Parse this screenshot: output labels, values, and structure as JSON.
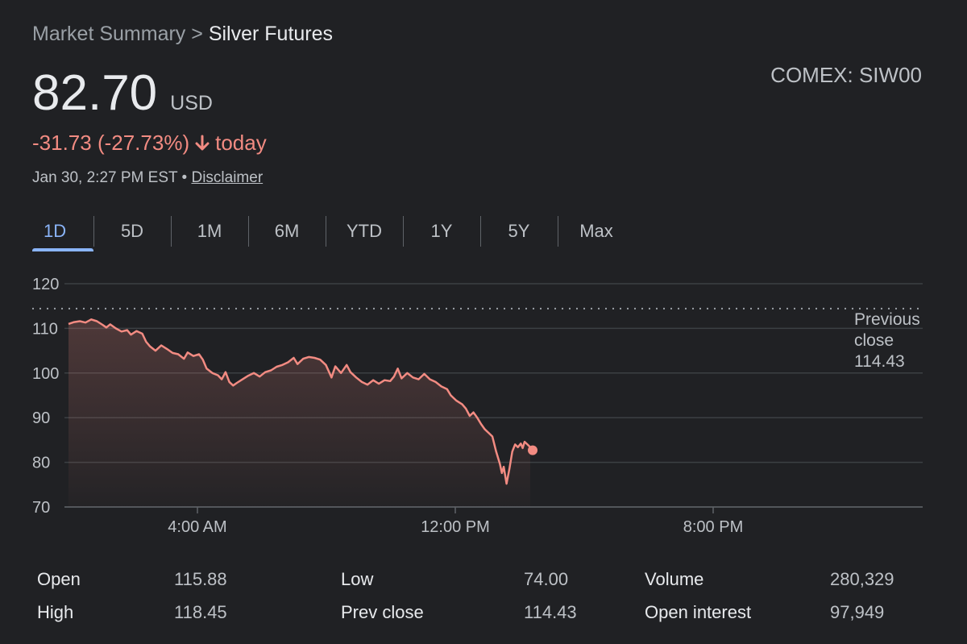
{
  "breadcrumb": {
    "parent": "Market Summary",
    "separator": ">",
    "current": "Silver Futures"
  },
  "exchange": "COMEX: SIW00",
  "price": {
    "value": "82.70",
    "currency": "USD"
  },
  "change": {
    "text": "-31.73 (-27.73%)",
    "period": "today",
    "color": "#f28b82"
  },
  "timestamp": {
    "text": "Jan 30, 2:27 PM EST",
    "separator": "•",
    "disclaimer": "Disclaimer"
  },
  "tabs": [
    "1D",
    "5D",
    "1M",
    "6M",
    "YTD",
    "1Y",
    "5Y",
    "Max"
  ],
  "active_tab": "1D",
  "accent_color": "#8ab4f8",
  "chart_data": {
    "type": "area",
    "y_ticks": [
      "120",
      "110",
      "100",
      "90",
      "80",
      "70"
    ],
    "ylim": [
      70,
      120
    ],
    "x_ticks": [
      {
        "label": "4:00 AM",
        "hour": 4
      },
      {
        "label": "12:00 PM",
        "hour": 12
      },
      {
        "label": "8:00 PM",
        "hour": 20
      }
    ],
    "xlim_hours": [
      0,
      24
    ],
    "previous_close": {
      "label_line1": "Previous",
      "label_line2": "close",
      "value": "114.43"
    },
    "line_color": "#f28b82",
    "series": [
      {
        "values": [
          [
            0.0,
            111.0
          ],
          [
            0.3,
            111.4
          ],
          [
            0.6,
            111.6
          ],
          [
            0.9,
            111.3
          ],
          [
            1.2,
            112.0
          ],
          [
            1.5,
            111.6
          ],
          [
            1.8,
            110.8
          ],
          [
            2.0,
            110.2
          ],
          [
            2.2,
            110.9
          ],
          [
            2.5,
            110.0
          ],
          [
            2.8,
            109.3
          ],
          [
            3.1,
            109.6
          ],
          [
            3.3,
            108.6
          ],
          [
            3.6,
            109.4
          ],
          [
            3.9,
            108.8
          ],
          [
            4.1,
            107.0
          ],
          [
            4.3,
            106.0
          ],
          [
            4.6,
            105.0
          ],
          [
            4.9,
            106.2
          ],
          [
            5.2,
            105.4
          ],
          [
            5.5,
            104.5
          ],
          [
            5.8,
            104.2
          ],
          [
            6.1,
            103.2
          ],
          [
            6.3,
            104.6
          ],
          [
            6.6,
            103.8
          ],
          [
            6.9,
            104.2
          ],
          [
            7.1,
            103.0
          ],
          [
            7.3,
            101.0
          ],
          [
            7.6,
            100.0
          ],
          [
            7.9,
            99.5
          ],
          [
            8.1,
            98.6
          ],
          [
            8.3,
            100.2
          ],
          [
            8.5,
            98.0
          ],
          [
            8.7,
            97.2
          ],
          [
            8.9,
            97.8
          ],
          [
            9.2,
            98.6
          ],
          [
            9.5,
            99.4
          ],
          [
            9.8,
            100.0
          ],
          [
            10.1,
            99.2
          ],
          [
            10.4,
            100.2
          ],
          [
            10.7,
            100.6
          ],
          [
            11.0,
            101.4
          ],
          [
            11.3,
            101.8
          ],
          [
            11.6,
            102.4
          ],
          [
            11.9,
            103.4
          ],
          [
            12.1,
            102.0
          ],
          [
            12.4,
            103.2
          ],
          [
            12.7,
            103.6
          ],
          [
            13.0,
            103.4
          ],
          [
            13.3,
            103.0
          ],
          [
            13.6,
            101.8
          ],
          [
            13.9,
            99.0
          ],
          [
            14.1,
            101.5
          ],
          [
            14.4,
            100.0
          ],
          [
            14.7,
            101.8
          ],
          [
            14.9,
            100.2
          ],
          [
            15.2,
            99.0
          ],
          [
            15.5,
            98.0
          ],
          [
            15.8,
            97.4
          ],
          [
            16.1,
            98.4
          ],
          [
            16.4,
            97.6
          ],
          [
            16.7,
            98.4
          ],
          [
            17.0,
            98.2
          ],
          [
            17.2,
            99.2
          ],
          [
            17.4,
            101.0
          ],
          [
            17.6,
            98.8
          ],
          [
            17.9,
            100.0
          ],
          [
            18.2,
            99.0
          ],
          [
            18.5,
            98.6
          ],
          [
            18.8,
            99.8
          ],
          [
            19.1,
            98.6
          ],
          [
            19.4,
            98.0
          ],
          [
            19.7,
            97.0
          ],
          [
            20.0,
            96.4
          ],
          [
            20.2,
            95.0
          ],
          [
            20.5,
            93.8
          ],
          [
            20.8,
            93.0
          ],
          [
            21.0,
            92.0
          ],
          [
            21.2,
            90.4
          ],
          [
            21.4,
            91.2
          ],
          [
            21.6,
            90.0
          ],
          [
            21.8,
            88.6
          ],
          [
            22.0,
            87.4
          ],
          [
            22.2,
            86.6
          ],
          [
            22.4,
            85.8
          ],
          [
            22.6,
            82.4
          ],
          [
            22.8,
            79.6
          ],
          [
            22.9,
            77.6
          ],
          [
            23.0,
            79.0
          ],
          [
            23.15,
            75.2
          ],
          [
            23.3,
            78.6
          ],
          [
            23.45,
            82.4
          ],
          [
            23.6,
            84.0
          ],
          [
            23.75,
            83.4
          ],
          [
            23.9,
            84.2
          ],
          [
            24.0,
            83.2
          ],
          [
            24.1,
            84.6
          ],
          [
            24.25,
            84.0
          ],
          [
            24.4,
            83.4
          ]
        ]
      }
    ],
    "series_time_scale_note": "values are [x,y]; x mapped linearly onto plot width",
    "last_value": "82.70"
  },
  "stats": [
    {
      "label": "Open",
      "value": "115.88"
    },
    {
      "label": "High",
      "value": "118.45"
    },
    {
      "label": "Low",
      "value": "74.00"
    },
    {
      "label": "Prev close",
      "value": "114.43"
    },
    {
      "label": "Volume",
      "value": "280,329"
    },
    {
      "label": "Open interest",
      "value": "97,949"
    }
  ]
}
